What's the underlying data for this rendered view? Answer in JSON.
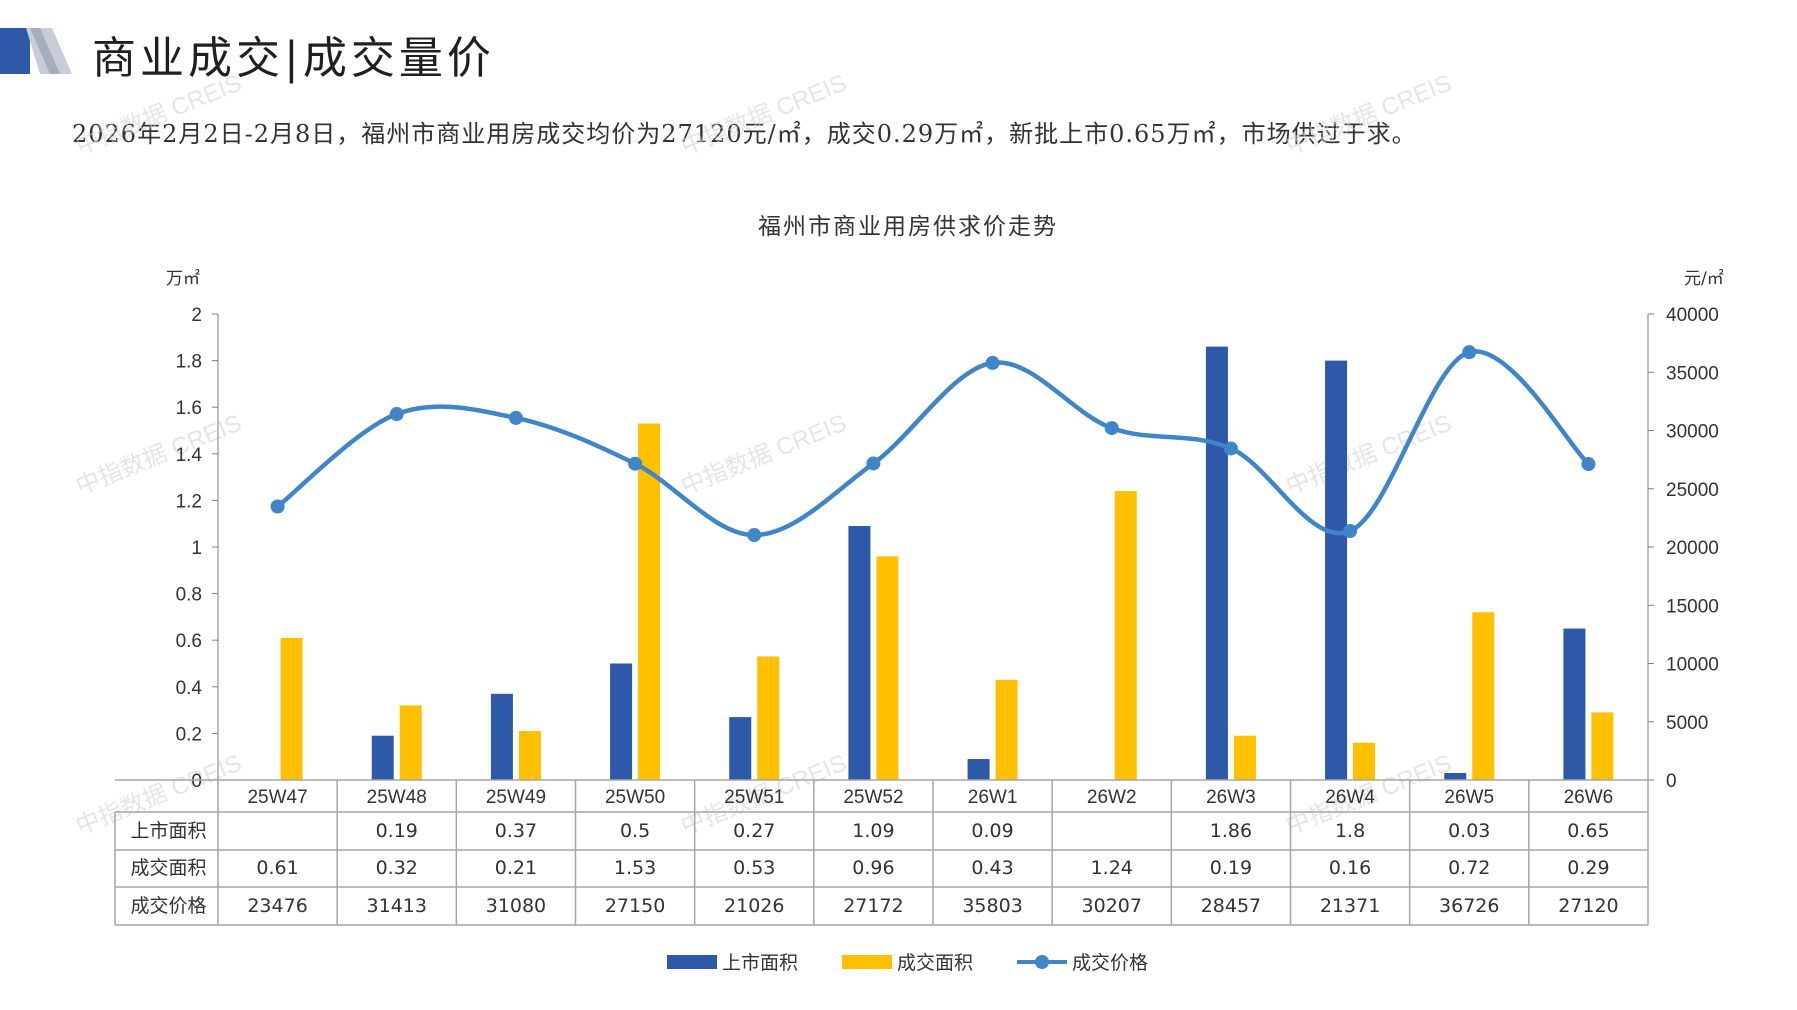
{
  "header": {
    "title": "商业成交|成交量价",
    "summary": "2026年2月2日-2月8日，福州市商业用房成交均价为27120元/㎡，成交0.29万㎡，新批上市0.65万㎡，市场供过于求。"
  },
  "watermark": "中指数据 CREIS",
  "colors": {
    "supply": "#2e59a8",
    "deal": "#ffc000",
    "price": "#3f85c8",
    "grid": "#a6a6a6"
  },
  "chart_data": {
    "type": "bar",
    "title": "福州市商业用房供求价走势",
    "left_unit": "万㎡",
    "right_unit": "元/㎡",
    "categories": [
      "25W47",
      "25W48",
      "25W49",
      "25W50",
      "25W51",
      "25W52",
      "26W1",
      "26W2",
      "26W3",
      "26W4",
      "26W5",
      "26W6"
    ],
    "series": [
      {
        "name": "上市面积",
        "kind": "bar",
        "axis": "left",
        "values": [
          null,
          0.19,
          0.37,
          0.5,
          0.27,
          1.09,
          0.09,
          null,
          1.86,
          1.8,
          0.03,
          0.65
        ],
        "labels": [
          "",
          "0.19",
          "0.37",
          "0.5",
          "0.27",
          "1.09",
          "0.09",
          "",
          "1.86",
          "1.8",
          "0.03",
          "0.65"
        ]
      },
      {
        "name": "成交面积",
        "kind": "bar",
        "axis": "left",
        "values": [
          0.61,
          0.32,
          0.21,
          1.53,
          0.53,
          0.96,
          0.43,
          1.24,
          0.19,
          0.16,
          0.72,
          0.29
        ],
        "labels": [
          "0.61",
          "0.32",
          "0.21",
          "1.53",
          "0.53",
          "0.96",
          "0.43",
          "1.24",
          "0.19",
          "0.16",
          "0.72",
          "0.29"
        ]
      },
      {
        "name": "成交价格",
        "kind": "line",
        "axis": "right",
        "values": [
          23476,
          31413,
          31080,
          27150,
          21026,
          27172,
          35803,
          30207,
          28457,
          21371,
          36726,
          27120
        ],
        "labels": [
          "23476",
          "31413",
          "31080",
          "27150",
          "21026",
          "27172",
          "35803",
          "30207",
          "28457",
          "21371",
          "36726",
          "27120"
        ]
      }
    ],
    "left_axis": {
      "range": [
        0,
        2
      ],
      "ticks": [
        "0",
        "0.2",
        "0.4",
        "0.6",
        "0.8",
        "1",
        "1.2",
        "1.4",
        "1.6",
        "1.8",
        "2"
      ]
    },
    "right_axis": {
      "range": [
        0,
        40000
      ],
      "ticks": [
        "0",
        "5000",
        "10000",
        "15000",
        "20000",
        "25000",
        "30000",
        "35000",
        "40000"
      ]
    },
    "legend_position": "bottom-center"
  }
}
